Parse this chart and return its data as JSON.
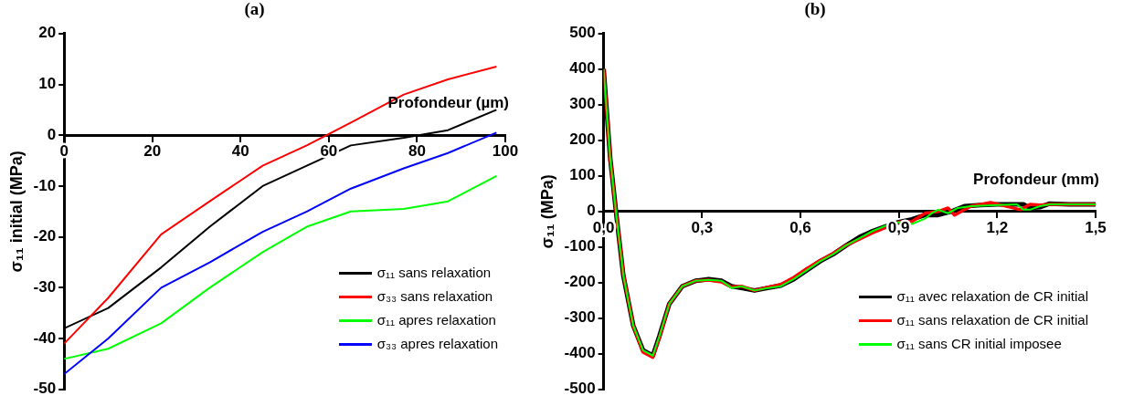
{
  "chart_data": [
    {
      "type": "line",
      "title": "(a)",
      "xlabel": "Profondeur (µm)",
      "ylabel": "σ₁₁ initial (MPa)",
      "x": [
        0,
        10,
        22,
        33,
        45,
        55,
        65,
        77,
        87,
        98
      ],
      "xlim": [
        0,
        100
      ],
      "xticks": [
        0,
        20,
        40,
        60,
        80,
        100
      ],
      "ylim": [
        -50,
        20
      ],
      "yticks": [
        -50,
        -40,
        -30,
        -20,
        -10,
        0,
        10,
        20
      ],
      "legend": "bottom right",
      "marker": "none",
      "series": [
        {
          "name": "σ₁₁ sans relaxation",
          "color": "#000000",
          "values": [
            -38,
            -34,
            -26,
            -18,
            -10,
            -6,
            -2,
            -0.5,
            1,
            5
          ]
        },
        {
          "name": "σ₃₃ sans relaxation",
          "color": "#ff0000",
          "values": [
            -41,
            -32,
            -19.5,
            -13,
            -6,
            -2,
            2.5,
            8,
            11,
            13.5
          ]
        },
        {
          "name": "σ₁₁ apres relaxation",
          "color": "#00ff00",
          "values": [
            -44,
            -42,
            -37,
            -30,
            -23,
            -18,
            -15,
            -14.5,
            -13,
            -8
          ]
        },
        {
          "name": "σ₃₃ apres relaxation",
          "color": "#0000ff",
          "values": [
            -47,
            -40,
            -30,
            -25,
            -19,
            -15,
            -10.5,
            -6.5,
            -3.5,
            0.5
          ]
        }
      ]
    },
    {
      "type": "line",
      "title": "(b)",
      "xlabel": "Profondeur (mm)",
      "ylabel": "σ₁₁ (MPa)",
      "xlim": [
        0,
        1.5
      ],
      "xticks": [
        {
          "value": 0,
          "label": "0,0"
        },
        {
          "value": 0.3,
          "label": "0,3"
        },
        {
          "value": 0.6,
          "label": "0,6"
        },
        {
          "value": 0.9,
          "label": "0,9"
        },
        {
          "value": 1.2,
          "label": "1,2"
        },
        {
          "value": 1.5,
          "label": "1,5"
        }
      ],
      "ylim": [
        -500,
        500
      ],
      "yticks": [
        -500,
        -400,
        -300,
        -200,
        -100,
        0,
        100,
        200,
        300,
        400,
        500
      ],
      "legend": "bottom right",
      "marker": "none",
      "series": [
        {
          "name": "σ₁₁ avec relaxation de CR initial",
          "color": "#000000",
          "x": [
            0,
            0.02,
            0.04,
            0.06,
            0.09,
            0.12,
            0.15,
            0.17,
            0.2,
            0.24,
            0.28,
            0.32,
            0.36,
            0.39,
            0.42,
            0.46,
            0.5,
            0.54,
            0.58,
            0.62,
            0.66,
            0.7,
            0.74,
            0.78,
            0.82,
            0.86,
            0.9,
            0.94,
            0.98,
            1.02,
            1.06,
            1.1,
            1.15,
            1.2,
            1.25,
            1.28,
            1.3,
            1.33,
            1.36,
            1.42,
            1.5
          ],
          "values": [
            400,
            150,
            -20,
            -180,
            -320,
            -390,
            -405,
            -350,
            -260,
            -210,
            -195,
            -190,
            -195,
            -210,
            -215,
            -222,
            -215,
            -208,
            -190,
            -165,
            -140,
            -120,
            -95,
            -72,
            -55,
            -42,
            -30,
            -22,
            -10,
            -10,
            0,
            15,
            18,
            20,
            20,
            20,
            10,
            12,
            22,
            20,
            20
          ]
        },
        {
          "name": "σ₁₁ sans relaxation de CR initial",
          "color": "#ff0000",
          "x": [
            0,
            0.02,
            0.04,
            0.06,
            0.09,
            0.12,
            0.15,
            0.17,
            0.2,
            0.24,
            0.28,
            0.32,
            0.36,
            0.39,
            0.42,
            0.46,
            0.5,
            0.54,
            0.58,
            0.62,
            0.66,
            0.7,
            0.74,
            0.78,
            0.82,
            0.86,
            0.9,
            0.94,
            0.98,
            1.02,
            1.05,
            1.07,
            1.12,
            1.18,
            1.24,
            1.27,
            1.3,
            1.33,
            1.36,
            1.42,
            1.5
          ],
          "values": [
            400,
            150,
            -20,
            -175,
            -320,
            -395,
            -410,
            -355,
            -260,
            -210,
            -195,
            -193,
            -198,
            -212,
            -210,
            -222,
            -213,
            -205,
            -185,
            -160,
            -138,
            -118,
            -95,
            -78,
            -60,
            -45,
            -30,
            -28,
            -5,
            0,
            10,
            -10,
            15,
            25,
            12,
            5,
            20,
            18,
            20,
            20,
            20
          ]
        },
        {
          "name": "σ₁₁ sans CR initial imposee",
          "color": "#00ff00",
          "x": [
            0,
            0.02,
            0.04,
            0.06,
            0.09,
            0.12,
            0.15,
            0.17,
            0.2,
            0.24,
            0.28,
            0.32,
            0.36,
            0.39,
            0.42,
            0.46,
            0.5,
            0.54,
            0.58,
            0.62,
            0.66,
            0.7,
            0.74,
            0.78,
            0.82,
            0.86,
            0.9,
            0.94,
            0.98,
            1.0,
            1.02,
            1.05,
            1.08,
            1.12,
            1.2,
            1.26,
            1.28,
            1.3,
            1.33,
            1.36,
            1.42,
            1.5
          ],
          "values": [
            400,
            150,
            -20,
            -180,
            -320,
            -390,
            -405,
            -350,
            -260,
            -210,
            -195,
            -192,
            -195,
            -215,
            -210,
            -222,
            -215,
            -210,
            -190,
            -165,
            -140,
            -120,
            -95,
            -75,
            -55,
            -40,
            -30,
            -35,
            -20,
            -5,
            5,
            -5,
            10,
            15,
            18,
            20,
            5,
            5,
            15,
            20,
            20,
            20
          ]
        }
      ]
    }
  ]
}
